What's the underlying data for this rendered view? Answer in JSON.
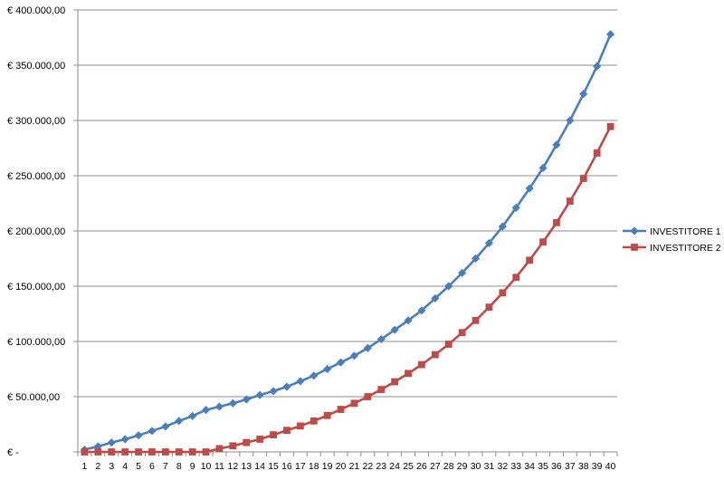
{
  "chart_data": {
    "type": "line",
    "title": "",
    "xlabel": "",
    "ylabel": "",
    "ylim": [
      0,
      400000
    ],
    "y_ticks": [
      {
        "value": 0,
        "label": "€ -"
      },
      {
        "value": 50000,
        "label": "€ 50.000,00"
      },
      {
        "value": 100000,
        "label": "€ 100.000,00"
      },
      {
        "value": 150000,
        "label": "€ 150.000,00"
      },
      {
        "value": 200000,
        "label": "€ 200.000,00"
      },
      {
        "value": 250000,
        "label": "€ 250.000,00"
      },
      {
        "value": 300000,
        "label": "€ 300.000,00"
      },
      {
        "value": 350000,
        "label": "€ 350.000,00"
      },
      {
        "value": 400000,
        "label": "€ 400.000,00"
      }
    ],
    "grid": "horizontal",
    "legend_position": "right",
    "categories": [
      "1",
      "2",
      "3",
      "4",
      "5",
      "6",
      "7",
      "8",
      "9",
      "10",
      "11",
      "12",
      "13",
      "14",
      "15",
      "16",
      "17",
      "18",
      "19",
      "20",
      "21",
      "22",
      "23",
      "24",
      "25",
      "26",
      "27",
      "28",
      "29",
      "30",
      "31",
      "32",
      "33",
      "34",
      "35",
      "36",
      "37",
      "38",
      "39",
      "40"
    ],
    "series": [
      {
        "name": "INVESTITORE 1",
        "color": "#4a7ebb",
        "marker": "diamond",
        "values": [
          2000,
          5000,
          8500,
          11500,
          15000,
          19000,
          23000,
          28000,
          32500,
          38000,
          41000,
          44000,
          47500,
          51500,
          55000,
          59000,
          64000,
          69000,
          75000,
          81000,
          87000,
          94000,
          102000,
          110500,
          119000,
          128000,
          139000,
          150000,
          162000,
          175000,
          189000,
          204000,
          221000,
          238500,
          257000,
          278000,
          300000,
          324000,
          349000,
          378000
        ]
      },
      {
        "name": "INVESTITORE 2",
        "color": "#be4b48",
        "marker": "square",
        "values": [
          0,
          0,
          0,
          0,
          0,
          0,
          0,
          0,
          0,
          0,
          3000,
          5500,
          8500,
          11500,
          15500,
          19500,
          23500,
          28000,
          33000,
          38500,
          44000,
          50000,
          56500,
          63500,
          71000,
          79000,
          88000,
          97500,
          108000,
          119000,
          131000,
          144000,
          158000,
          173500,
          190000,
          207500,
          227000,
          247500,
          270500,
          294500
        ]
      }
    ]
  }
}
